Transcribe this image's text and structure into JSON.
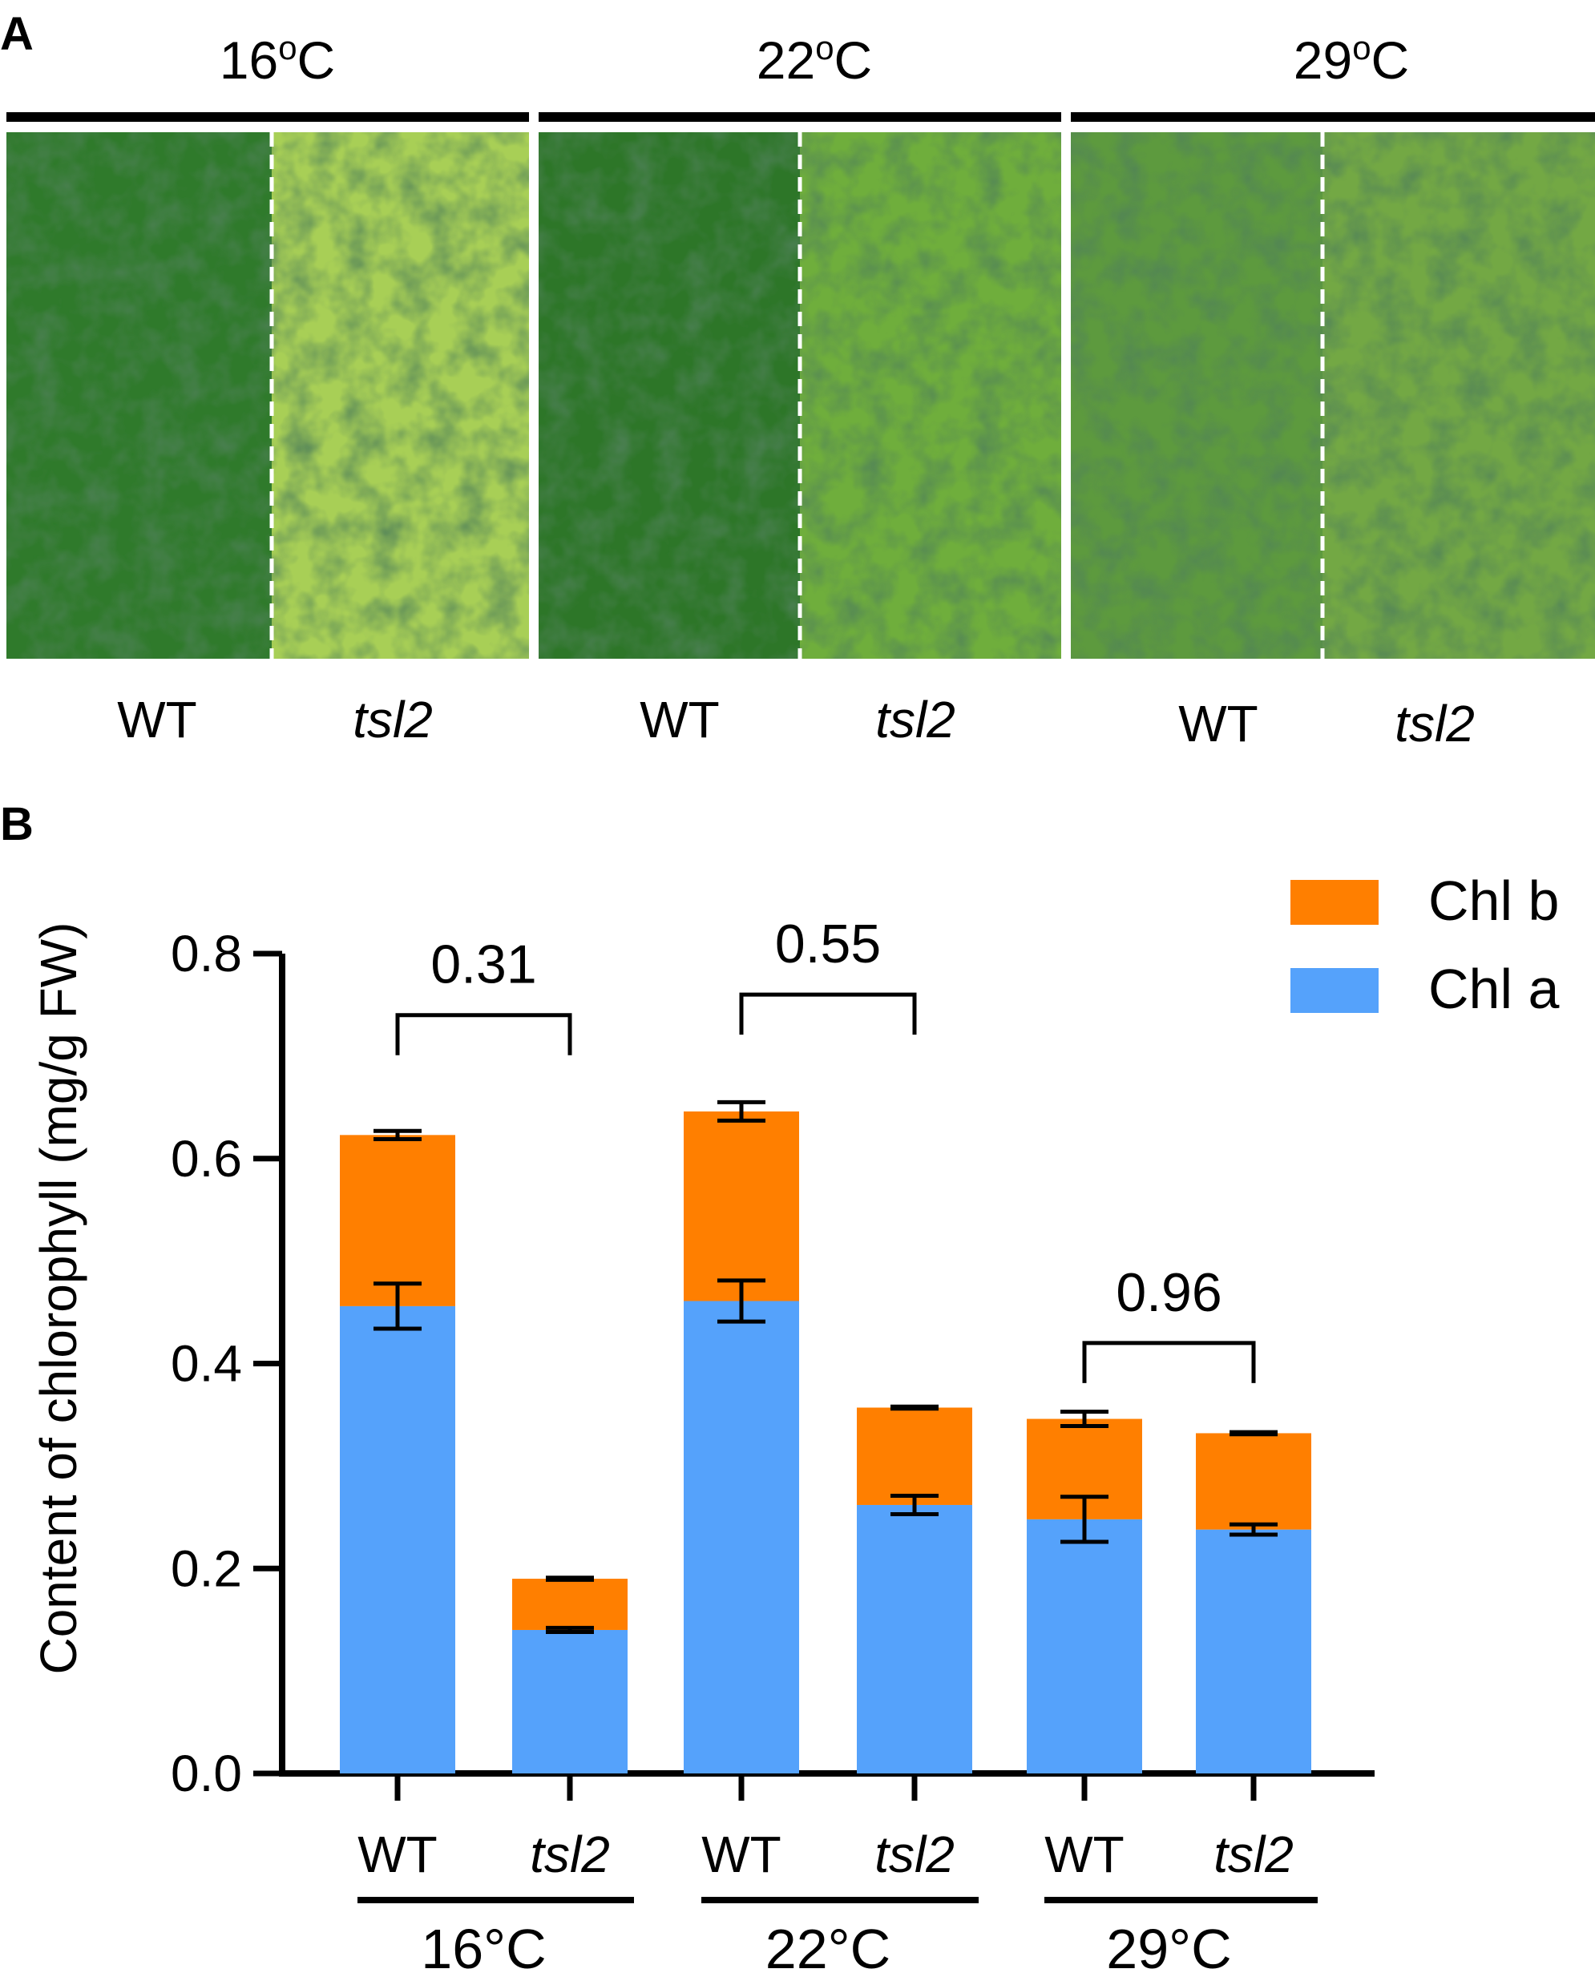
{
  "panel_a": {
    "label": "A",
    "groups": [
      {
        "temp_base": "16",
        "temp_sup": "o",
        "temp_unit": "C",
        "wt_label": "WT",
        "mut_label": "tsl2"
      },
      {
        "temp_base": "22",
        "temp_sup": "o",
        "temp_unit": "C",
        "wt_label": "WT",
        "mut_label": "tsl2"
      },
      {
        "temp_base": "29",
        "temp_sup": "o",
        "temp_unit": "C",
        "wt_label": "WT",
        "mut_label": "tsl2"
      }
    ]
  },
  "panel_b": {
    "label": "B"
  },
  "chart_data": {
    "type": "bar",
    "stacked": true,
    "title": "",
    "xlabel": "",
    "ylabel": "Content of chlorophyll (mg/g FW)",
    "ylim": [
      0,
      0.8
    ],
    "yticks": [
      0.0,
      0.2,
      0.4,
      0.6,
      0.8
    ],
    "ytick_labels": [
      "0.0",
      "0.2",
      "0.4",
      "0.6",
      "0.8"
    ],
    "categories": [
      "WT",
      "tsl2",
      "WT",
      "tsl2",
      "WT",
      "tsl2"
    ],
    "category_italic": [
      false,
      true,
      false,
      true,
      false,
      true
    ],
    "groups": [
      {
        "label": "16°C",
        "members": [
          0,
          1
        ]
      },
      {
        "label": "22°C",
        "members": [
          2,
          3
        ]
      },
      {
        "label": "29°C",
        "members": [
          4,
          5
        ]
      }
    ],
    "series": [
      {
        "name": "Chl a",
        "color": "#55a2fb",
        "values": [
          0.456,
          0.14,
          0.461,
          0.262,
          0.248,
          0.238
        ],
        "errors": [
          0.022,
          0.002,
          0.02,
          0.009,
          0.022,
          0.005
        ]
      },
      {
        "name": "Chl b",
        "color": "#ff7f00",
        "values": [
          0.167,
          0.05,
          0.185,
          0.095,
          0.098,
          0.094
        ],
        "errors": [
          0.004,
          0.001,
          0.009,
          0.001,
          0.007,
          0.001
        ]
      }
    ],
    "legend": {
      "position": "top-right",
      "order": [
        "Chl b",
        "Chl a"
      ]
    },
    "annotations": [
      {
        "text": "0.31",
        "from": 0,
        "to": 1,
        "y": 0.74
      },
      {
        "text": "0.55",
        "from": 2,
        "to": 3,
        "y": 0.76
      },
      {
        "text": "0.96",
        "from": 4,
        "to": 5,
        "y": 0.42
      }
    ]
  }
}
